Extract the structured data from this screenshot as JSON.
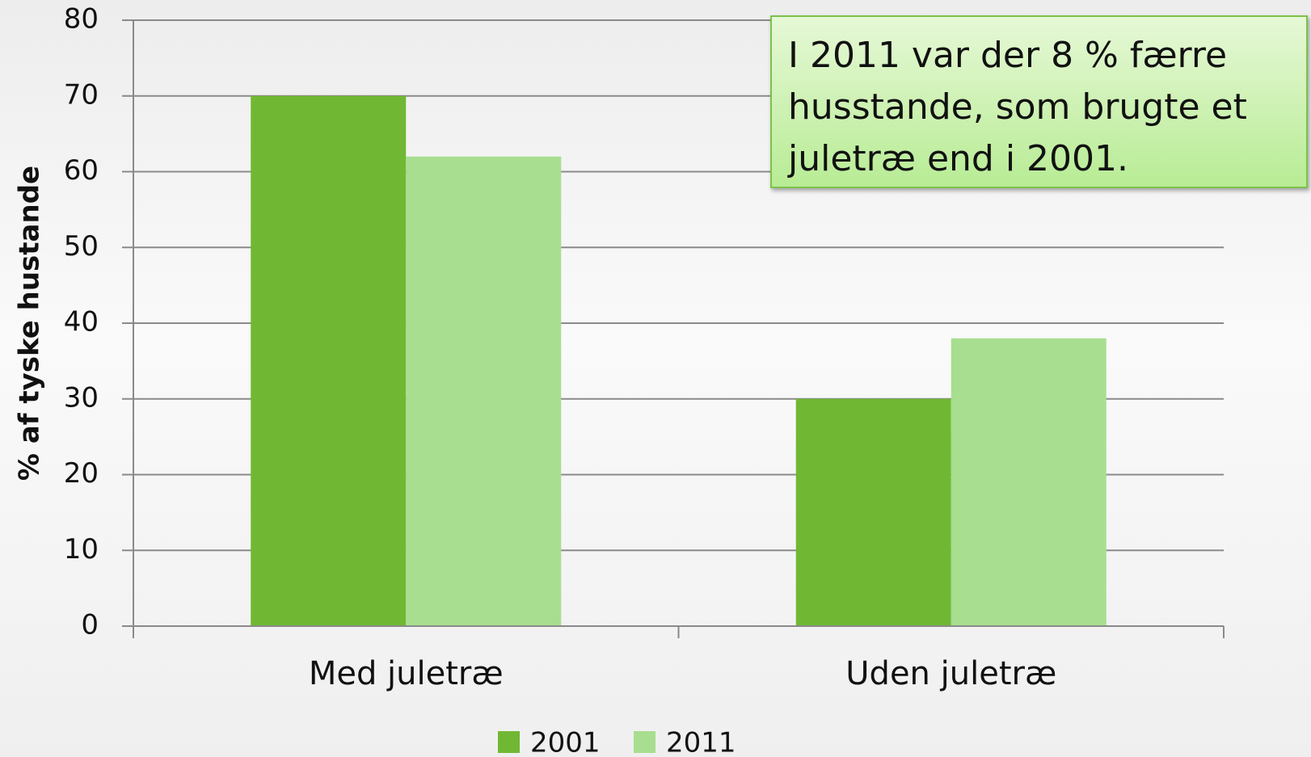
{
  "chart_data": {
    "type": "bar",
    "y_label": "% af tyske hustande",
    "annotation": "I 2011 var der 8 % færre husstande, som brugte et juletræ end i 2001.",
    "categories": [
      "Med juletræ",
      "Uden juletræ"
    ],
    "series": [
      {
        "name": "2001",
        "color": "#70b833",
        "values": [
          70,
          30
        ]
      },
      {
        "name": "2011",
        "color": "#a8de8f",
        "values": [
          62,
          38
        ]
      }
    ],
    "ylim": [
      0,
      80
    ],
    "yticks": [
      0,
      10,
      20,
      30,
      40,
      50,
      60,
      70,
      80
    ],
    "grid": true,
    "legend": "bottom"
  }
}
